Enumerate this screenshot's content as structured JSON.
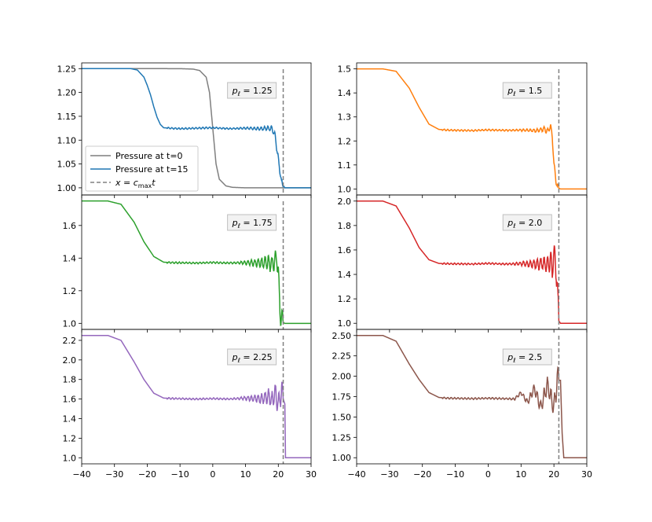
{
  "chart_data": [
    {
      "type": "line",
      "name": "panel-p1.25",
      "xlim": [
        -40,
        30
      ],
      "ylim": [
        0.985,
        1.262
      ],
      "xticks": [
        -40,
        -30,
        -20,
        -10,
        0,
        10,
        20,
        30
      ],
      "xtick_labels": [
        "−40",
        "−30",
        "−20",
        "−10",
        "0",
        "10",
        "20",
        "30"
      ],
      "yticks": [
        1.0,
        1.05,
        1.1,
        1.15,
        1.2,
        1.25
      ],
      "ytick_labels": [
        "1.00",
        "1.05",
        "1.10",
        "1.15",
        "1.20",
        "1.25"
      ],
      "show_xtick_labels": false,
      "annotation": {
        "prefix": "p",
        "sub": "ℓ",
        "value": "1.25"
      },
      "p_left": 1.25,
      "color": "#1f77b4",
      "vline_x": 21.5,
      "series": [
        {
          "name": "Pressure at t=0",
          "color": "#7f7f7f",
          "style": "solid",
          "x": [
            -40,
            -20,
            -10,
            -6,
            -4,
            -2,
            -1,
            0,
            1,
            2,
            4,
            6,
            10,
            20,
            30
          ],
          "values": [
            1.25,
            1.25,
            1.2499,
            1.249,
            1.246,
            1.232,
            1.2,
            1.125,
            1.05,
            1.018,
            1.004,
            1.001,
            1.0,
            1.0,
            1.0
          ]
        },
        {
          "name": "Pressure at t=15",
          "color": "#1f77b4",
          "style": "solid",
          "x": [
            -40,
            -25,
            -23,
            -21,
            -20,
            -19,
            -18,
            -17,
            -16,
            -15,
            -13,
            -10,
            -5,
            0,
            5,
            10,
            15,
            17,
            18,
            19,
            20,
            21,
            22,
            30
          ],
          "values": [
            1.25,
            1.25,
            1.247,
            1.232,
            1.215,
            1.195,
            1.17,
            1.148,
            1.133,
            1.126,
            1.125,
            1.124,
            1.125,
            1.126,
            1.124,
            1.125,
            1.124,
            1.125,
            1.124,
            1.11,
            1.06,
            1.01,
            1.0,
            1.0
          ]
        }
      ],
      "legend": {
        "placement": "lower-left",
        "entries": [
          {
            "label": "Pressure at t=0",
            "color": "#7f7f7f",
            "style": "solid"
          },
          {
            "label": "Pressure at t=15",
            "color": "#1f77b4",
            "style": "solid"
          },
          {
            "label": "x = c_max t",
            "color": "#808080",
            "style": "dashed"
          }
        ]
      }
    },
    {
      "type": "line",
      "name": "panel-p1.5",
      "xlim": [
        -40,
        30
      ],
      "ylim": [
        0.975,
        1.525
      ],
      "xticks": [
        -40,
        -30,
        -20,
        -10,
        0,
        10,
        20,
        30
      ],
      "xtick_labels": [
        "−40",
        "−30",
        "−20",
        "−10",
        "0",
        "10",
        "20",
        "30"
      ],
      "yticks": [
        1.0,
        1.1,
        1.2,
        1.3,
        1.4,
        1.5
      ],
      "ytick_labels": [
        "1.0",
        "1.1",
        "1.2",
        "1.3",
        "1.4",
        "1.5"
      ],
      "show_xtick_labels": false,
      "annotation": {
        "prefix": "p",
        "sub": "ℓ",
        "value": "1.5"
      },
      "p_left": 1.5,
      "color": "#ff7f0e",
      "vline_x": 21.5,
      "series": [
        {
          "name": "Pressure at t=15",
          "color": "#ff7f0e",
          "style": "solid",
          "x": [
            -40,
            -32,
            -28,
            -24,
            -21,
            -18,
            -15,
            -12,
            -5,
            0,
            5,
            10,
            15,
            17,
            18,
            19,
            19.5,
            20,
            20.5,
            21,
            21.5,
            22,
            30
          ],
          "values": [
            1.5,
            1.5,
            1.49,
            1.42,
            1.34,
            1.27,
            1.248,
            1.245,
            1.243,
            1.246,
            1.244,
            1.245,
            1.243,
            1.25,
            1.24,
            1.26,
            1.22,
            1.1,
            1.05,
            1.01,
            1.003,
            1.0,
            1.0
          ]
        }
      ]
    },
    {
      "type": "line",
      "name": "panel-p1.75",
      "xlim": [
        -40,
        30
      ],
      "ylim": [
        0.963,
        1.787
      ],
      "xticks": [
        -40,
        -30,
        -20,
        -10,
        0,
        10,
        20,
        30
      ],
      "xtick_labels": [
        "−40",
        "−30",
        "−20",
        "−10",
        "0",
        "10",
        "20",
        "30"
      ],
      "yticks": [
        1.0,
        1.2,
        1.4,
        1.6
      ],
      "ytick_labels": [
        "1.0",
        "1.2",
        "1.4",
        "1.6"
      ],
      "show_xtick_labels": false,
      "annotation": {
        "prefix": "p",
        "sub": "ℓ",
        "value": "1.75"
      },
      "p_left": 1.75,
      "color": "#2ca02c",
      "vline_x": 21.5,
      "series": [
        {
          "name": "Pressure at t=15",
          "color": "#2ca02c",
          "style": "solid",
          "x": [
            -40,
            -32,
            -28,
            -24,
            -21,
            -18,
            -15,
            -12,
            -5,
            0,
            5,
            10,
            15,
            17,
            18,
            19,
            19.5,
            20,
            20.5,
            21,
            21.5,
            22,
            30
          ],
          "values": [
            1.75,
            1.75,
            1.73,
            1.62,
            1.5,
            1.41,
            1.375,
            1.372,
            1.37,
            1.373,
            1.37,
            1.372,
            1.37,
            1.375,
            1.36,
            1.38,
            1.42,
            1.3,
            1.1,
            1.02,
            1.005,
            1.0,
            1.0
          ]
        }
      ]
    },
    {
      "type": "line",
      "name": "panel-p2.0",
      "xlim": [
        -40,
        30
      ],
      "ylim": [
        0.95,
        2.05
      ],
      "xticks": [
        -40,
        -30,
        -20,
        -10,
        0,
        10,
        20,
        30
      ],
      "xtick_labels": [
        "−40",
        "−30",
        "−20",
        "−10",
        "0",
        "10",
        "20",
        "30"
      ],
      "yticks": [
        1.0,
        1.2,
        1.4,
        1.6,
        1.8,
        2.0
      ],
      "ytick_labels": [
        "1.0",
        "1.2",
        "1.4",
        "1.6",
        "1.8",
        "2.0"
      ],
      "show_xtick_labels": false,
      "annotation": {
        "prefix": "p",
        "sub": "ℓ",
        "value": "2.0"
      },
      "p_left": 2.0,
      "color": "#d62728",
      "vline_x": 21.5,
      "series": [
        {
          "name": "Pressure at t=15",
          "color": "#d62728",
          "style": "solid",
          "x": [
            -40,
            -32,
            -28,
            -24,
            -21,
            -18,
            -15,
            -12,
            -5,
            0,
            5,
            10,
            15,
            17,
            18,
            19,
            19.5,
            20,
            20.5,
            21,
            21.5,
            22,
            30
          ],
          "values": [
            2.0,
            2.0,
            1.96,
            1.78,
            1.62,
            1.52,
            1.49,
            1.487,
            1.485,
            1.49,
            1.485,
            1.488,
            1.485,
            1.49,
            1.47,
            1.52,
            1.43,
            1.56,
            1.5,
            1.3,
            1.02,
            1.0,
            1.0
          ]
        }
      ]
    },
    {
      "type": "line",
      "name": "panel-p2.25",
      "xlim": [
        -40,
        30
      ],
      "ylim": [
        0.938,
        2.312
      ],
      "xticks": [
        -40,
        -30,
        -20,
        -10,
        0,
        10,
        20,
        30
      ],
      "xtick_labels": [
        "−40",
        "−30",
        "−20",
        "−10",
        "0",
        "10",
        "20",
        "30"
      ],
      "yticks": [
        1.0,
        1.2,
        1.4,
        1.6,
        1.8,
        2.0,
        2.2
      ],
      "ytick_labels": [
        "1.0",
        "1.2",
        "1.4",
        "1.6",
        "1.8",
        "2.0",
        "2.2"
      ],
      "show_xtick_labels": true,
      "annotation": {
        "prefix": "p",
        "sub": "ℓ",
        "value": "2.25"
      },
      "p_left": 2.25,
      "color": "#9467bd",
      "vline_x": 21.5,
      "series": [
        {
          "name": "Pressure at t=15",
          "color": "#9467bd",
          "style": "solid",
          "x": [
            -40,
            -32,
            -28,
            -24,
            -21,
            -18,
            -15,
            -12,
            -5,
            0,
            5,
            10,
            15,
            17,
            18,
            19,
            20,
            21,
            21.5,
            22,
            22.2,
            30
          ],
          "values": [
            2.25,
            2.25,
            2.2,
            1.98,
            1.8,
            1.66,
            1.61,
            1.605,
            1.6,
            1.605,
            1.6,
            1.61,
            1.6,
            1.63,
            1.58,
            1.66,
            1.55,
            1.68,
            1.6,
            1.55,
            1.0,
            1.0
          ]
        }
      ]
    },
    {
      "type": "line",
      "name": "panel-p2.5",
      "xlim": [
        -40,
        30
      ],
      "ylim": [
        0.925,
        2.575
      ],
      "xticks": [
        -40,
        -30,
        -20,
        -10,
        0,
        10,
        20,
        30
      ],
      "xtick_labels": [
        "−40",
        "−30",
        "−20",
        "−10",
        "0",
        "10",
        "20",
        "30"
      ],
      "yticks": [
        1.0,
        1.25,
        1.5,
        1.75,
        2.0,
        2.25,
        2.5
      ],
      "ytick_labels": [
        "1.00",
        "1.25",
        "1.50",
        "1.75",
        "2.00",
        "2.25",
        "2.50"
      ],
      "show_xtick_labels": true,
      "annotation": {
        "prefix": "p",
        "sub": "ℓ",
        "value": "2.5"
      },
      "p_left": 2.5,
      "color": "#8c564b",
      "vline_x": 21.5,
      "series": [
        {
          "name": "Pressure at t=15",
          "color": "#8c564b",
          "style": "solid",
          "x": [
            -40,
            -32,
            -28,
            -24,
            -21,
            -18,
            -15,
            -12,
            -5,
            0,
            5,
            8,
            10,
            12,
            14,
            16,
            18,
            20,
            21,
            22,
            22.5,
            23,
            30
          ],
          "values": [
            2.5,
            2.5,
            2.43,
            2.15,
            1.96,
            1.8,
            1.74,
            1.73,
            1.725,
            1.73,
            1.725,
            1.72,
            1.8,
            1.68,
            1.85,
            1.62,
            1.9,
            1.6,
            1.95,
            1.95,
            1.3,
            1.0,
            1.0
          ]
        }
      ]
    }
  ]
}
